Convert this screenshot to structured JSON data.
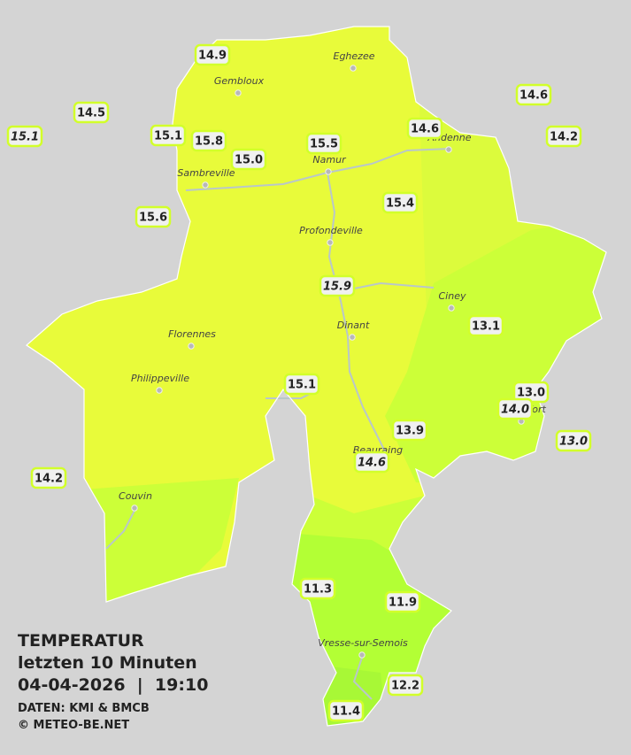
{
  "header": {
    "title": "TEMPERATUR",
    "subtitle": "letzten 10 Minuten",
    "datetime": "04-04-2026  |  19:10",
    "source": "DATEN: KMI & BMCB",
    "copyright": "© METEO-BE.NET"
  },
  "cities": [
    "Eghezee",
    "Gembloux",
    "Andenne",
    "Sambreville",
    "Namur",
    "Profondeville",
    "Ciney",
    "Florennes",
    "Dinant",
    "Philippeville",
    "Rochefort",
    "Beauraing",
    "Couvin",
    "Vresse-sur-Semois"
  ],
  "stations": [
    {
      "value": "14.9",
      "italic": false
    },
    {
      "value": "14.5",
      "italic": false
    },
    {
      "value": "15.1",
      "italic": true
    },
    {
      "value": "15.1",
      "italic": false
    },
    {
      "value": "15.8",
      "italic": false
    },
    {
      "value": "15.0",
      "italic": false
    },
    {
      "value": "15.5",
      "italic": false
    },
    {
      "value": "14.6",
      "italic": false
    },
    {
      "value": "14.6",
      "italic": false
    },
    {
      "value": "14.2",
      "italic": false
    },
    {
      "value": "15.6",
      "italic": false
    },
    {
      "value": "15.4",
      "italic": false
    },
    {
      "value": "15.9",
      "italic": true
    },
    {
      "value": "13.1",
      "italic": false
    },
    {
      "value": "15.1",
      "italic": false
    },
    {
      "value": "13.0",
      "italic": false
    },
    {
      "value": "14.0",
      "italic": true
    },
    {
      "value": "13.9",
      "italic": false
    },
    {
      "value": "13.0",
      "italic": true
    },
    {
      "value": "14.6",
      "italic": true
    },
    {
      "value": "14.2",
      "italic": false
    },
    {
      "value": "11.3",
      "italic": false
    },
    {
      "value": "11.9",
      "italic": false
    },
    {
      "value": "12.2",
      "italic": false
    },
    {
      "value": "11.4",
      "italic": false
    }
  ]
}
